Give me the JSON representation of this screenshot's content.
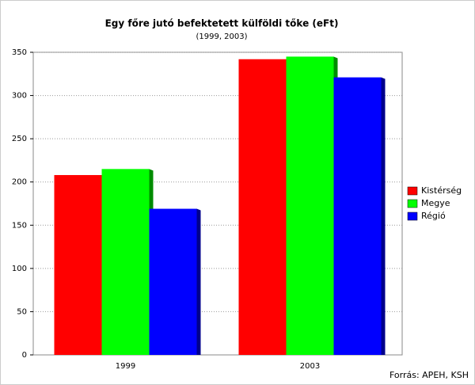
{
  "chart_data": {
    "type": "bar",
    "title": "Egy főre jutó befektetett külföldi tőke (eFt)",
    "subtitle": "(1999, 2003)",
    "categories": [
      "1999",
      "2003"
    ],
    "series": [
      {
        "name": "Kistérség",
        "color": "#ff0000",
        "values": [
          208,
          342
        ]
      },
      {
        "name": "Megye",
        "color": "#00ff00",
        "values": [
          215,
          345
        ]
      },
      {
        "name": "Régió",
        "color": "#0000ff",
        "values": [
          169,
          321
        ]
      }
    ],
    "ylim": [
      0,
      350
    ],
    "yticks": [
      0,
      50,
      100,
      150,
      200,
      250,
      300,
      350
    ],
    "grid": true,
    "legend": "right",
    "source": "Forrás: APEH, KSH"
  }
}
